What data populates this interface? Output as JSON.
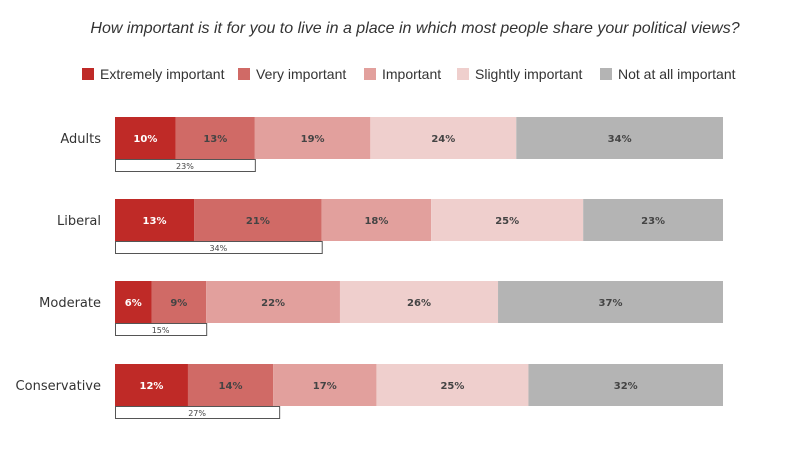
{
  "chart_data": {
    "type": "bar",
    "orientation": "horizontal",
    "stacked": true,
    "title": "How important is it for you to live in a place in which most people share your political views?",
    "categories": [
      "Adults",
      "Liberal",
      "Moderate",
      "Conservative"
    ],
    "series": [
      {
        "name": "Extremely important",
        "color": "#bf2a27",
        "values": [
          10,
          13,
          6,
          12
        ],
        "labels": [
          "10%",
          "13%",
          "6%",
          "12%"
        ]
      },
      {
        "name": "Very important",
        "color": "#d06a66",
        "values": [
          13,
          21,
          9,
          14
        ],
        "labels": [
          "13%",
          "21%",
          "9%",
          "14%"
        ]
      },
      {
        "name": "Important",
        "color": "#e2a09d",
        "values": [
          19,
          18,
          22,
          17
        ],
        "labels": [
          "19%",
          "18%",
          "22%",
          "17%"
        ]
      },
      {
        "name": "Slightly important",
        "color": "#efcfcd",
        "values": [
          24,
          25,
          26,
          25
        ],
        "labels": [
          "24%",
          "25%",
          "26%",
          "25%"
        ]
      },
      {
        "name": "Not at all important",
        "color": "#b4b4b4",
        "values": [
          34,
          23,
          37,
          32
        ],
        "labels": [
          "34%",
          "23%",
          "37%",
          "32%"
        ]
      }
    ],
    "bracket_totals": [
      {
        "value": 23,
        "label": "23%"
      },
      {
        "value": 34,
        "label": "34%"
      },
      {
        "value": 15,
        "label": "15%"
      },
      {
        "value": 27,
        "label": "27%"
      }
    ],
    "legend_position": "top",
    "xlim": [
      0,
      100
    ],
    "grid": false
  }
}
